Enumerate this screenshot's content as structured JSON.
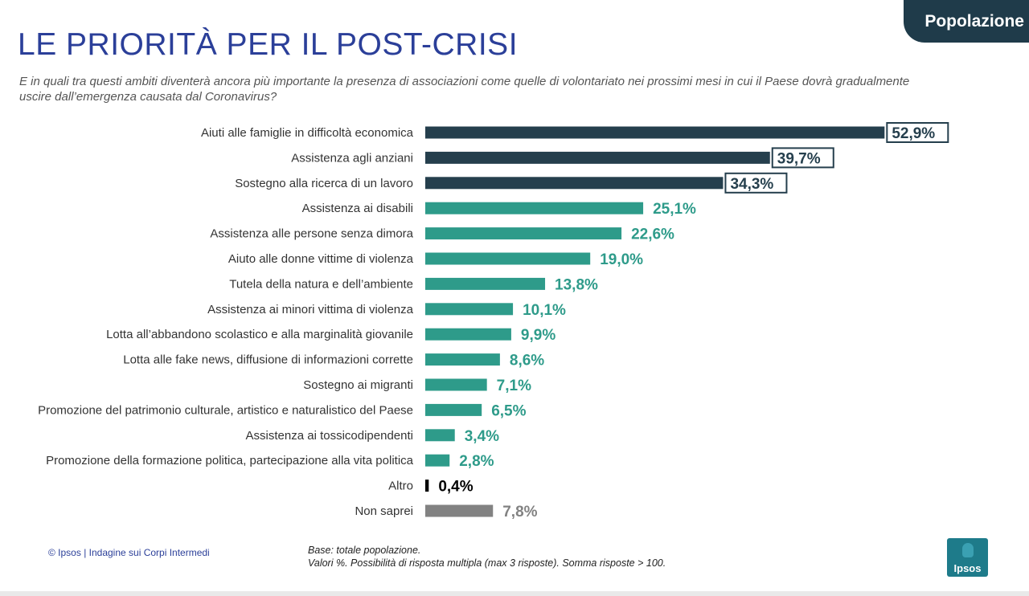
{
  "tag": "Popolazione",
  "title": "LE PRIORITÀ PER IL POST-CRISI",
  "question": "E in quali tra questi ambiti diventerà ancora più importante la presenza di associazioni come quelle di volontariato nei prossimi mesi in cui il Paese dovrà gradualmente uscire dall’emergenza causata dal Coronavirus?",
  "footer": "© Ipsos | Indagine sui Corpi Intermedi",
  "note_line1": "Base: totale popolazione.",
  "note_line2": "Valori %. Possibilità di risposta multipla (max 3 risposte). Somma risposte > 100.",
  "logo_text": "Ipsos",
  "colors": {
    "dark": "#253f4d",
    "teal": "#2e9b8a",
    "black": "#000000",
    "grey": "#828282"
  },
  "chart_data": {
    "type": "bar",
    "orientation": "horizontal",
    "unit": "%",
    "categories": [
      "Aiuti alle famiglie in difficoltà economica",
      "Assistenza agli anziani",
      "Sostegno alla ricerca di un lavoro",
      "Assistenza ai disabili",
      "Assistenza alle persone senza dimora",
      "Aiuto alle donne vittime di violenza",
      "Tutela della natura e dell’ambiente",
      "Assistenza ai minori vittima di violenza",
      "Lotta all’abbandono scolastico e alla marginalità giovanile",
      "Lotta alle fake news, diffusione di informazioni corrette",
      "Sostegno ai migranti",
      "Promozione del patrimonio culturale, artistico e naturalistico del Paese",
      "Assistenza ai tossicodipendenti",
      "Promozione della formazione politica, partecipazione alla vita politica",
      "Altro",
      "Non saprei"
    ],
    "values": [
      52.9,
      39.7,
      34.3,
      25.1,
      22.6,
      19.0,
      13.8,
      10.1,
      9.9,
      8.6,
      7.1,
      6.5,
      3.4,
      2.8,
      0.4,
      7.8
    ],
    "value_labels": [
      "52,9%",
      "39,7%",
      "34,3%",
      "25,1%",
      "22,6%",
      "19,0%",
      "13,8%",
      "10,1%",
      "9,9%",
      "8,6%",
      "7,1%",
      "6,5%",
      "3,4%",
      "2,8%",
      "0,4%",
      "7,8%"
    ],
    "bar_colors": [
      "dark",
      "dark",
      "dark",
      "teal",
      "teal",
      "teal",
      "teal",
      "teal",
      "teal",
      "teal",
      "teal",
      "teal",
      "teal",
      "teal",
      "black",
      "grey"
    ],
    "boxed": [
      true,
      true,
      true,
      false,
      false,
      false,
      false,
      false,
      false,
      false,
      false,
      false,
      false,
      false,
      false,
      false
    ]
  }
}
